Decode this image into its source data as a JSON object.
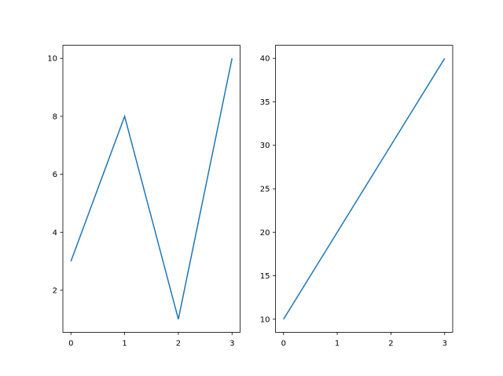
{
  "chart_data": [
    {
      "type": "line",
      "x": [
        0,
        1,
        2,
        3
      ],
      "y": [
        3,
        8,
        1,
        10
      ],
      "xlim": [
        -0.15,
        3.15
      ],
      "ylim": [
        0.55,
        10.45
      ],
      "xticks": [
        "0",
        "1",
        "2",
        "3"
      ],
      "yticks": [
        "2",
        "4",
        "6",
        "8",
        "10"
      ],
      "title": "",
      "xlabel": "",
      "ylabel": "",
      "grid": false,
      "color": "#1f77b4"
    },
    {
      "type": "line",
      "x": [
        0,
        1,
        2,
        3
      ],
      "y": [
        10,
        20,
        30,
        40
      ],
      "xlim": [
        -0.15,
        3.15
      ],
      "ylim": [
        8.5,
        41.5
      ],
      "xticks": [
        "0",
        "1",
        "2",
        "3"
      ],
      "yticks": [
        "10",
        "15",
        "20",
        "25",
        "30",
        "35",
        "40"
      ],
      "title": "",
      "xlabel": "",
      "ylabel": "",
      "grid": false,
      "color": "#1f77b4"
    }
  ]
}
